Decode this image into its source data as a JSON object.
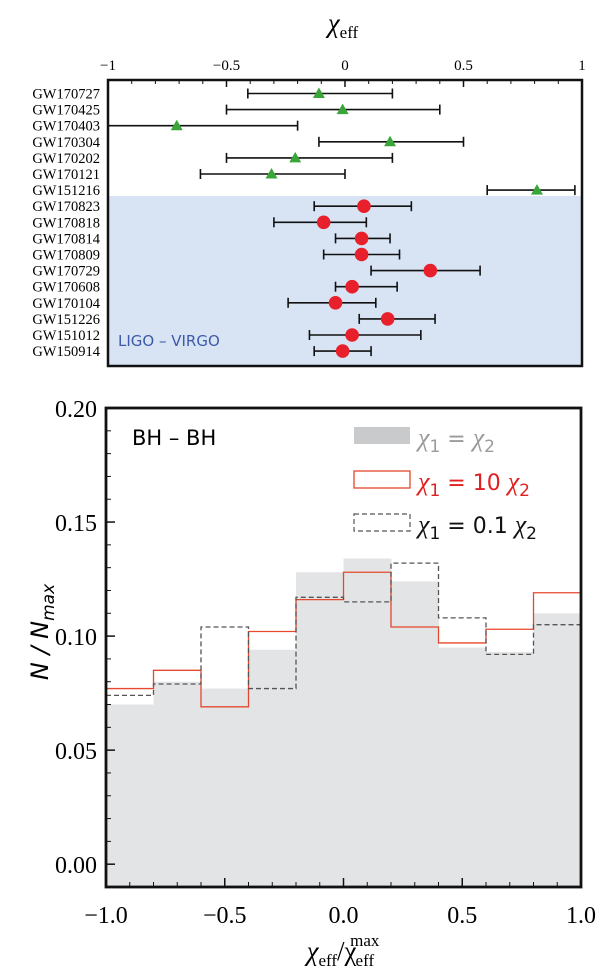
{
  "colors": {
    "band": "#d8e4f4",
    "band_label": "#3c5aa8",
    "triangle": "#3aa63a",
    "circle": "#e8202c",
    "gray_fill": "#e3e4e6",
    "gray_legend": "#c9cacc",
    "gray_text": "#9a9a9a",
    "red_line": "#e5482c",
    "red_text": "#e02020",
    "dash_line": "#555555"
  },
  "chart_data": [
    {
      "type": "scatter",
      "xlabel": "χeff",
      "xlabel_main": "χ",
      "xlabel_sub": "eff",
      "xlim": [
        -1,
        1
      ],
      "xtick_labels": [
        "−1",
        "−0.5",
        "0",
        "0.5",
        "1"
      ],
      "xtick_values": [
        -1,
        -0.5,
        0,
        0.5,
        1
      ],
      "band_label": "LIGO – VIRGO",
      "series": [
        {
          "marker": "triangle",
          "events": [
            {
              "label": "GW170727",
              "value": -0.11,
              "low": -0.41,
              "high": 0.2
            },
            {
              "label": "GW170425",
              "value": -0.01,
              "low": -0.5,
              "high": 0.4
            },
            {
              "label": "GW170403",
              "value": -0.71,
              "low": -1.0,
              "high": -0.2
            },
            {
              "label": "GW170304",
              "value": 0.19,
              "low": -0.11,
              "high": 0.5
            },
            {
              "label": "GW170202",
              "value": -0.21,
              "low": -0.5,
              "high": 0.2
            },
            {
              "label": "GW170121",
              "value": -0.31,
              "low": -0.61,
              "high": 0.0
            },
            {
              "label": "GW151216",
              "value": 0.81,
              "low": 0.6,
              "high": 0.97
            }
          ]
        },
        {
          "marker": "circle",
          "events": [
            {
              "label": "GW170823",
              "value": 0.08,
              "low": -0.13,
              "high": 0.28
            },
            {
              "label": "GW170818",
              "value": -0.09,
              "low": -0.3,
              "high": 0.09
            },
            {
              "label": "GW170814",
              "value": 0.07,
              "low": -0.04,
              "high": 0.19
            },
            {
              "label": "GW170809",
              "value": 0.07,
              "low": -0.09,
              "high": 0.23
            },
            {
              "label": "GW170729",
              "value": 0.36,
              "low": 0.11,
              "high": 0.57
            },
            {
              "label": "GW170608",
              "value": 0.03,
              "low": -0.04,
              "high": 0.22
            },
            {
              "label": "GW170104",
              "value": -0.04,
              "low": -0.24,
              "high": 0.13
            },
            {
              "label": "GW151226",
              "value": 0.18,
              "low": 0.06,
              "high": 0.38
            },
            {
              "label": "GW151012",
              "value": 0.03,
              "low": -0.15,
              "high": 0.32
            },
            {
              "label": "GW150914",
              "value": -0.01,
              "low": -0.13,
              "high": 0.11
            }
          ]
        }
      ]
    },
    {
      "type": "bar",
      "title": "BH – BH",
      "ylabel": "N / N",
      "ylabel_sub": "max",
      "xlabel_main": "χ",
      "xlabel_sub": "eff",
      "xlabel_mid": "/χ",
      "xlabel_sub2": "eff",
      "xlabel_sup2": "max",
      "xlim": [
        -1,
        1
      ],
      "ylim": [
        -0.01,
        0.2
      ],
      "xtick_labels": [
        "−1.0",
        "−0.5",
        "0.0",
        "0.5",
        "1.0"
      ],
      "xtick_values": [
        -1,
        -0.5,
        0,
        0.5,
        1
      ],
      "ytick_labels": [
        "0.00",
        "0.05",
        "0.10",
        "0.15",
        "0.20"
      ],
      "ytick_values": [
        0,
        0.05,
        0.1,
        0.15,
        0.2
      ],
      "bin_edges": [
        -1.0,
        -0.8,
        -0.6,
        -0.4,
        -0.2,
        0.0,
        0.2,
        0.4,
        0.6,
        0.8,
        1.0
      ],
      "series": [
        {
          "name": "χ1 = χ2",
          "legend": {
            "main_a": "χ",
            "sub_a": "1",
            "eq": " = ",
            "main_b": "χ",
            "sub_b": "2",
            "coef": ""
          },
          "style": "filled",
          "values": [
            0.07,
            0.08,
            0.077,
            0.094,
            0.128,
            0.134,
            0.124,
            0.095,
            0.093,
            0.11
          ]
        },
        {
          "name": "χ1 = 10 χ2",
          "legend": {
            "main_a": "χ",
            "sub_a": "1",
            "eq": " = ",
            "main_b": "χ",
            "sub_b": "2",
            "coef": "10 "
          },
          "style": "red",
          "values": [
            0.077,
            0.085,
            0.069,
            0.102,
            0.116,
            0.128,
            0.104,
            0.097,
            0.103,
            0.119
          ]
        },
        {
          "name": "χ1 = 0.1 χ2",
          "legend": {
            "main_a": "χ",
            "sub_a": "1",
            "eq": " = ",
            "main_b": "χ",
            "sub_b": "2",
            "coef": "0.1 "
          },
          "style": "dashed",
          "values": [
            0.074,
            0.079,
            0.104,
            0.077,
            0.117,
            0.115,
            0.132,
            0.108,
            0.092,
            0.105
          ]
        }
      ]
    }
  ]
}
